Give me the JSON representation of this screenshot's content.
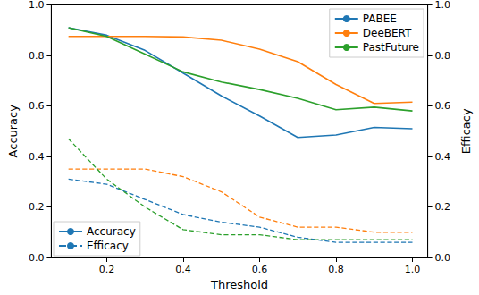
{
  "chart_data": {
    "type": "line",
    "x_label": "Threshold",
    "y_label": "Accuracy",
    "y2_label": "Efficacy",
    "x": [
      0.1,
      0.2,
      0.3,
      0.4,
      0.5,
      0.6,
      0.7,
      0.8,
      0.9,
      1.0
    ],
    "xlim": [
      0.055,
      1.04
    ],
    "xticks": [
      0.2,
      0.4,
      0.6,
      0.8,
      {
        "value": 1,
        "label": "1.0"
      }
    ],
    "ylim": [
      0,
      1
    ],
    "yticks": [
      {
        "value": 0,
        "label": "0.0"
      },
      0.2,
      0.4,
      0.6,
      0.8,
      {
        "value": 1,
        "label": "1.0"
      }
    ],
    "y2lim": [
      0,
      1
    ],
    "y2ticks": [
      {
        "value": 0,
        "label": "0.0"
      },
      0.2,
      0.4,
      0.6,
      0.8,
      {
        "value": 1,
        "label": "1.0"
      }
    ],
    "grid": false,
    "legend": "upper right",
    "series": [
      {
        "name": "PABEE",
        "color": "#1f77b4",
        "line_style": "solid",
        "values": [
          0.91,
          0.88,
          0.82,
          0.73,
          0.64,
          0.56,
          0.475,
          0.485,
          0.515,
          0.51
        ]
      },
      {
        "name": "DeeBERT",
        "color": "#ff7f0e",
        "line_style": "solid",
        "values": [
          0.875,
          0.875,
          0.875,
          0.873,
          0.86,
          0.825,
          0.775,
          0.685,
          0.61,
          0.615
        ]
      },
      {
        "name": "PastFuture",
        "color": "#2ca02c",
        "line_style": "solid",
        "values": [
          0.91,
          0.875,
          0.805,
          0.735,
          0.695,
          0.665,
          0.63,
          0.585,
          0.595,
          0.58
        ]
      },
      {
        "name": "PABEE",
        "color": "#1f77b4",
        "line_style": "dashed",
        "axis": "y2",
        "values": [
          0.31,
          0.29,
          0.23,
          0.17,
          0.14,
          0.12,
          0.08,
          0.06,
          0.06,
          0.06
        ]
      },
      {
        "name": "DeeBERT",
        "color": "#ff7f0e",
        "line_style": "dashed",
        "axis": "y2",
        "values": [
          0.35,
          0.35,
          0.35,
          0.32,
          0.26,
          0.16,
          0.12,
          0.12,
          0.1,
          0.1
        ]
      },
      {
        "name": "PastFuture",
        "color": "#2ca02c",
        "line_style": "dashed",
        "axis": "y2",
        "values": [
          0.47,
          0.31,
          0.2,
          0.11,
          0.09,
          0.09,
          0.07,
          0.07,
          0.07,
          0.07
        ]
      }
    ],
    "style_legend": [
      {
        "name": "Accuracy",
        "color": "#1f77b4",
        "line_style": "solid"
      },
      {
        "name": "Efficacy",
        "color": "#1f77b4",
        "line_style": "dashed"
      }
    ]
  }
}
